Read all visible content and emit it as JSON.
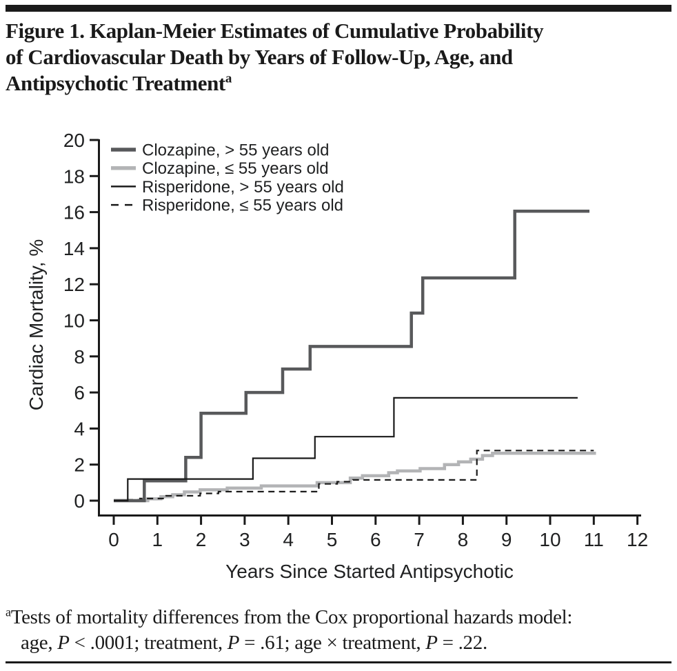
{
  "header": {
    "title_lines": [
      "Figure 1. Kaplan-Meier Estimates of Cumulative Probability",
      "of Cardiovascular Death by Years of Follow-Up, Age, and",
      "Antipsychotic Treatment"
    ],
    "title_sup": "a"
  },
  "chart_data": {
    "type": "line",
    "subtype": "kaplan-meier-step",
    "title": "",
    "xlabel": "Years Since Started Antipsychotic",
    "ylabel": "Cardiac Mortality, %",
    "xlim": [
      0,
      12
    ],
    "ylim": [
      0,
      20
    ],
    "xticks": [
      0,
      1,
      2,
      3,
      4,
      5,
      6,
      7,
      8,
      9,
      10,
      11,
      12
    ],
    "yticks": [
      0,
      2,
      4,
      6,
      8,
      10,
      12,
      14,
      16,
      18,
      20
    ],
    "grid": false,
    "legend_position": "top-left-inside",
    "axis_color": "#1a1a1a",
    "series": [
      {
        "name": "Clozapine, > 55 years old",
        "color": "#58595b",
        "line_width": 4.5,
        "dash": null,
        "legend_width": 5.5,
        "steps": [
          [
            0,
            0
          ],
          [
            0.7,
            1.1
          ],
          [
            1.65,
            2.4
          ],
          [
            2.0,
            4.85
          ],
          [
            3.03,
            6.0
          ],
          [
            3.87,
            7.3
          ],
          [
            4.5,
            8.55
          ],
          [
            6.82,
            10.4
          ],
          [
            7.08,
            12.35
          ],
          [
            9.19,
            16.05
          ]
        ],
        "end_x": 10.9
      },
      {
        "name": "Clozapine, ≤ 55 years old",
        "color": "#b3b4b6",
        "line_width": 4.5,
        "dash": null,
        "legend_width": 5.5,
        "steps": [
          [
            0,
            0
          ],
          [
            0.78,
            0.1
          ],
          [
            1.08,
            0.22
          ],
          [
            1.35,
            0.33
          ],
          [
            1.62,
            0.48
          ],
          [
            1.98,
            0.6
          ],
          [
            2.6,
            0.7
          ],
          [
            3.38,
            0.82
          ],
          [
            4.66,
            1.0
          ],
          [
            5.42,
            1.25
          ],
          [
            5.7,
            1.38
          ],
          [
            6.3,
            1.55
          ],
          [
            6.5,
            1.65
          ],
          [
            7.02,
            1.78
          ],
          [
            7.58,
            2.0
          ],
          [
            7.9,
            2.15
          ],
          [
            8.18,
            2.3
          ],
          [
            8.45,
            2.5
          ],
          [
            8.68,
            2.63
          ]
        ],
        "end_x": 11.05
      },
      {
        "name": "Risperidone, > 55 years old",
        "color": "#1a1a1a",
        "line_width": 2.2,
        "dash": null,
        "legend_width": 2.5,
        "steps": [
          [
            0,
            0
          ],
          [
            0.32,
            1.2
          ],
          [
            3.19,
            2.35
          ],
          [
            4.61,
            3.55
          ],
          [
            6.42,
            5.7
          ]
        ],
        "end_x": 10.63
      },
      {
        "name": "Risperidone, ≤ 55 years old",
        "color": "#1a1a1a",
        "line_width": 2.2,
        "dash": "9 6.5",
        "legend_width": 2.5,
        "legend_dash": "11 9",
        "steps": [
          [
            0.3,
            0.05
          ],
          [
            0.6,
            0.12
          ],
          [
            1.2,
            0.27
          ],
          [
            1.98,
            0.4
          ],
          [
            2.4,
            0.5
          ],
          [
            4.7,
            0.93
          ],
          [
            5.12,
            1.05
          ],
          [
            5.48,
            1.15
          ],
          [
            8.32,
            2.78
          ]
        ],
        "end_x": 11.0
      }
    ],
    "draw_order": [
      1,
      3,
      0,
      2
    ]
  },
  "footnote": {
    "sup": "a",
    "line1": "Tests of mortality differences from the Cox proportional hazards model:",
    "line2_segments": [
      {
        "t": "age, "
      },
      {
        "t": "P",
        "i": true
      },
      {
        "t": " < .0001; treatment, "
      },
      {
        "t": "P",
        "i": true
      },
      {
        "t": " = .61; age × treatment, "
      },
      {
        "t": "P",
        "i": true
      },
      {
        "t": " = .22."
      }
    ]
  }
}
